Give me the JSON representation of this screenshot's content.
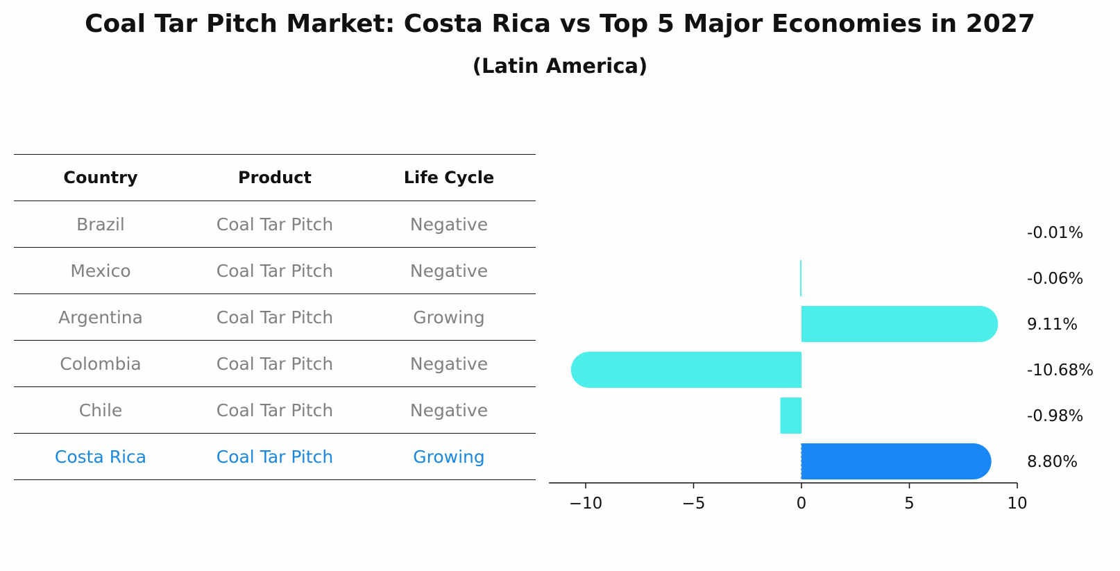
{
  "title": "Coal Tar Pitch Market: Costa Rica vs Top 5 Major Economies in 2027",
  "subtitle": "(Latin America)",
  "table": {
    "headers": [
      "Country",
      "Product",
      "Life Cycle"
    ],
    "rows": [
      [
        "Brazil",
        "Coal Tar Pitch",
        "Negative"
      ],
      [
        "Mexico",
        "Coal Tar Pitch",
        "Negative"
      ],
      [
        "Argentina",
        "Coal Tar Pitch",
        "Growing"
      ],
      [
        "Colombia",
        "Coal Tar Pitch",
        "Negative"
      ],
      [
        "Chile",
        "Coal Tar Pitch",
        "Negative"
      ],
      [
        "Costa Rica",
        "Coal Tar Pitch",
        "Growing"
      ]
    ]
  },
  "chart_data": {
    "type": "bar",
    "orientation": "horizontal",
    "categories": [
      "Brazil",
      "Mexico",
      "Argentina",
      "Colombia",
      "Chile",
      "Costa Rica"
    ],
    "values": [
      -0.01,
      -0.06,
      9.11,
      -10.68,
      -0.98,
      8.8
    ],
    "value_labels": [
      "-0.01%",
      "-0.06%",
      "9.11%",
      "-10.68%",
      "-0.98%",
      "8.80%"
    ],
    "highlight_index": 5,
    "xlim": [
      -11.7,
      10
    ],
    "xticks": [
      -10,
      -5,
      0,
      5,
      10
    ],
    "xtick_labels": [
      "−10",
      "−5",
      "0",
      "5",
      "10"
    ],
    "colors": {
      "bar": "#4deeea",
      "highlight": "#1a87f5",
      "text_highlight": "#1a87e0",
      "text_muted": "#808080"
    }
  }
}
